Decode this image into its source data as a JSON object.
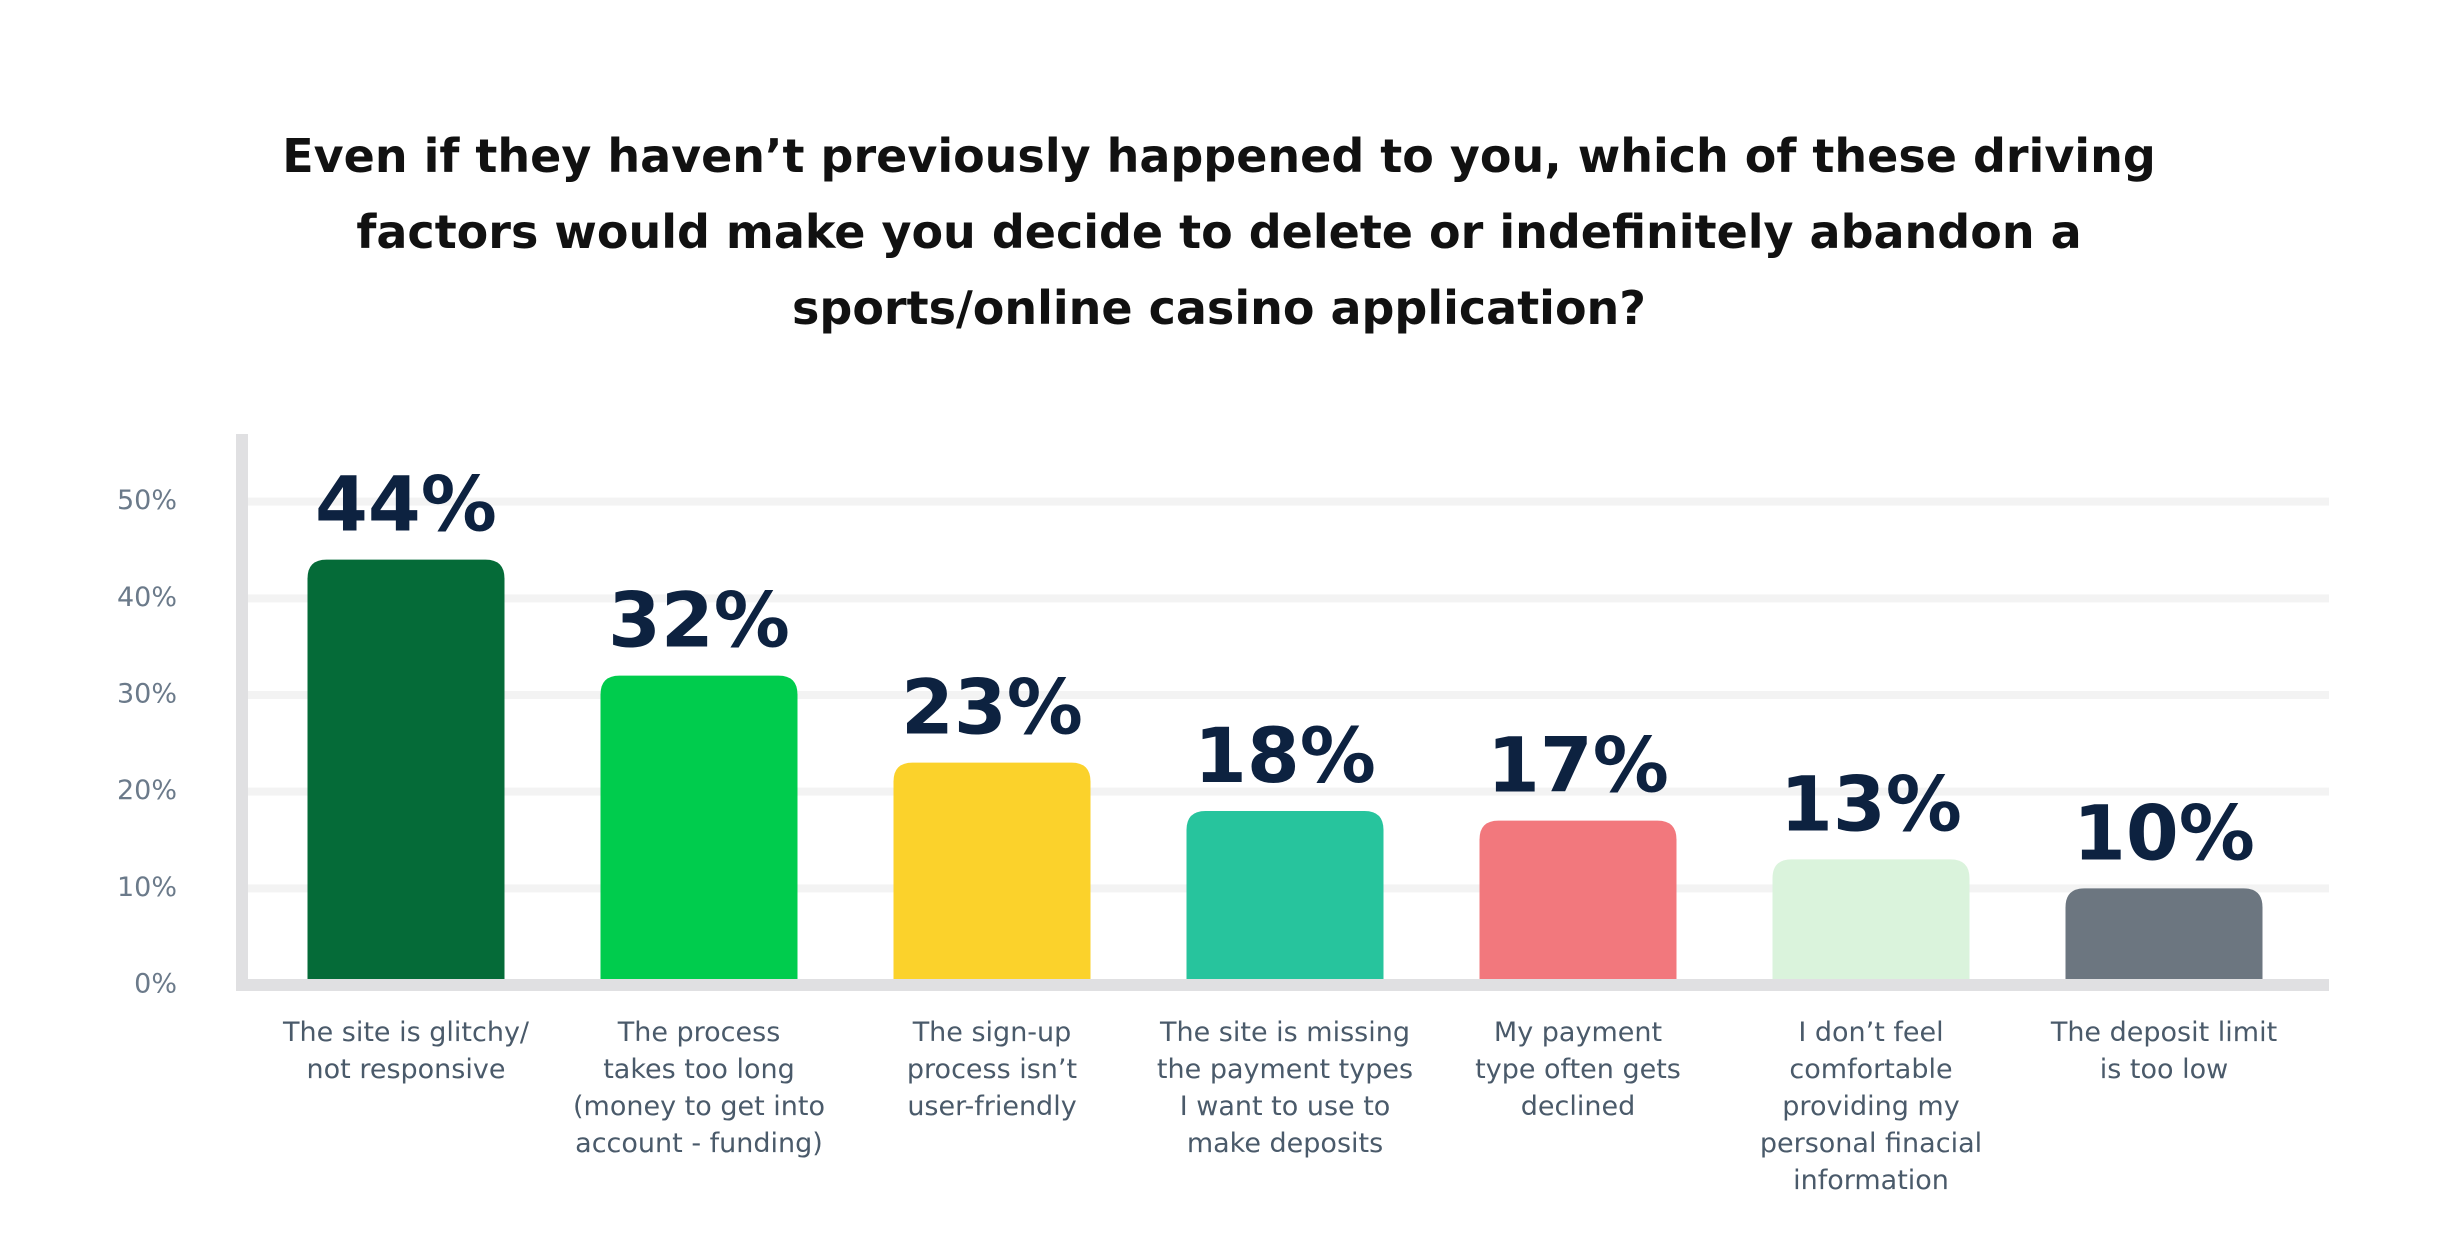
{
  "chart_data": {
    "type": "bar",
    "title": "Even if they haven’t previously happened to you, which of these driving\nfactors would make you decide to delete or indefinitely abandon a\nsports/online casino application?",
    "categories": [
      "The site is glitchy/\nnot responsive",
      "The process\ntakes too long\n(money to get into\naccount - funding)",
      "The sign-up\nprocess isn’t\nuser-friendly",
      "The site is missing\nthe payment types\nI want to use to\nmake deposits",
      "My payment\ntype often gets\ndeclined",
      "I don’t feel\ncomfortable\nproviding my\npersonal finacial\ninformation",
      "The deposit limit\nis too low"
    ],
    "values": [
      44,
      32,
      23,
      18,
      17,
      13,
      10
    ],
    "value_labels": [
      "44%",
      "32%",
      "23%",
      "18%",
      "17%",
      "13%",
      "10%"
    ],
    "colors": [
      "#056b38",
      "#00cc4d",
      "#fbd22b",
      "#27c49d",
      "#f2787d",
      "#daf3dc",
      "#6c7680"
    ],
    "ylim": [
      0,
      57
    ],
    "yticks": [
      {
        "value": 0,
        "label": "0%"
      },
      {
        "value": 10,
        "label": "10%"
      },
      {
        "value": 20,
        "label": "20%"
      },
      {
        "value": 30,
        "label": "30%"
      },
      {
        "value": 40,
        "label": "40%"
      },
      {
        "value": 50,
        "label": "50%"
      }
    ],
    "grid": true
  }
}
